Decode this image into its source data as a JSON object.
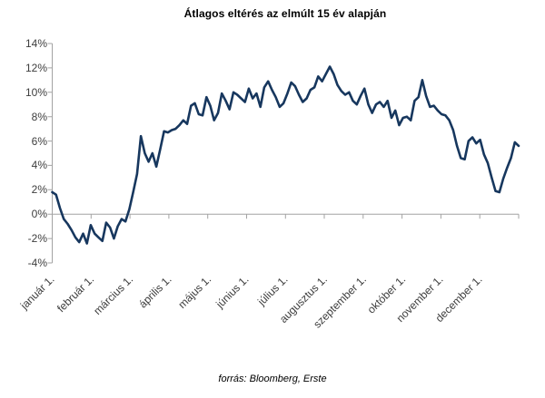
{
  "header": {
    "title": "Átlagos eltérés az elmúlt 15 év alapján"
  },
  "footer": {
    "source": "forrás: Bloomberg, Erste"
  },
  "colors": {
    "line": "#17375E",
    "axis": "#A3A3A3",
    "tick_label": "#3d3d3d",
    "background": "#FFFFFF"
  },
  "chart_data": {
    "type": "line",
    "title": "Átlagos eltérés az elmúlt 15 év alapján",
    "unit": "%",
    "xlabel": "",
    "ylabel": "",
    "ylim": [
      -4,
      14
    ],
    "grid": false,
    "legend": "none",
    "x_start": "január 1.",
    "x_end": "december 31.",
    "y_tick_values": [
      14,
      12,
      10,
      8,
      6,
      4,
      2,
      0,
      -2,
      -4
    ],
    "y_tick_labels": [
      "14%",
      "12%",
      "10%",
      "8%",
      "6%",
      "4%",
      "2%",
      "0%",
      "-2%",
      "-4%"
    ],
    "x_tick_labels": [
      "január 1.",
      "február 1.",
      "március 1.",
      "április 1.",
      "május 1.",
      "június 1.",
      "július 1.",
      "augusztus 1.",
      "szeptember 1.",
      "október 1.",
      "november 1.",
      "december 1."
    ],
    "series": [
      {
        "name": "Átlagos eltérés az elmúlt 15 év alapján",
        "sampling": "kb. 3 naponként (január 1. – december 31.)",
        "values": [
          1.8,
          1.6,
          0.5,
          -0.4,
          -0.8,
          -1.3,
          -1.9,
          -2.3,
          -1.6,
          -2.4,
          -0.9,
          -1.6,
          -1.9,
          -2.2,
          -0.7,
          -1.1,
          -2.0,
          -1.0,
          -0.4,
          -0.6,
          0.4,
          1.8,
          3.3,
          6.4,
          5.0,
          4.3,
          5.0,
          3.9,
          5.3,
          6.8,
          6.7,
          6.9,
          7.0,
          7.3,
          7.7,
          7.4,
          8.9,
          9.1,
          8.2,
          8.1,
          9.6,
          8.9,
          7.7,
          8.3,
          9.9,
          9.3,
          8.6,
          10.0,
          9.8,
          9.5,
          9.2,
          10.3,
          9.5,
          9.9,
          8.8,
          10.4,
          10.9,
          10.2,
          9.6,
          8.8,
          9.1,
          9.9,
          10.8,
          10.5,
          9.8,
          9.2,
          9.5,
          10.2,
          10.4,
          11.3,
          10.9,
          11.5,
          12.1,
          11.5,
          10.6,
          10.1,
          9.8,
          10.0,
          9.3,
          9.0,
          9.7,
          10.3,
          9.0,
          8.3,
          9.0,
          9.2,
          8.8,
          9.3,
          7.9,
          8.5,
          7.3,
          7.9,
          8.0,
          7.7,
          9.3,
          9.6,
          11.0,
          9.7,
          8.8,
          8.9,
          8.5,
          8.2,
          8.1,
          7.7,
          6.9,
          5.6,
          4.6,
          4.5,
          6.0,
          6.3,
          5.8,
          6.1,
          4.9,
          4.2,
          3.0,
          1.9,
          1.8,
          2.9,
          3.8,
          4.6,
          5.9,
          5.6
        ]
      }
    ]
  }
}
